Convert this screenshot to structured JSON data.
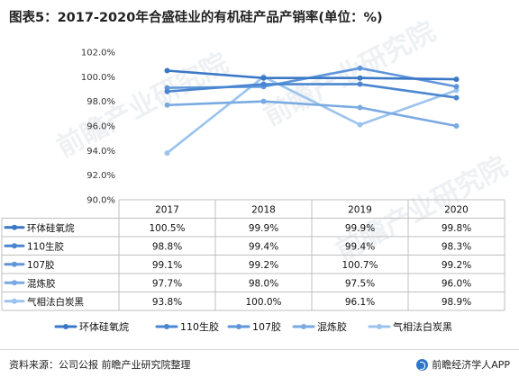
{
  "title": "图表5：2017-2020年合盛硅业的有机硅产品产销率(单位：%)",
  "source": "资料来源：公司公报 前瞻产业研究院整理",
  "brand": "前瞻经济学人APP",
  "watermark": "前瞻产业研究院",
  "chart_data": {
    "type": "line",
    "categories": [
      "2017",
      "2018",
      "2019",
      "2020"
    ],
    "y_ticks": [
      "102.0%",
      "100.0%",
      "98.0%",
      "96.0%",
      "94.0%",
      "92.0%",
      "90.0%"
    ],
    "ylim": [
      90,
      102
    ],
    "grid": false,
    "legend_position": "bottom",
    "series": [
      {
        "name": "环体硅氧烷",
        "values": [
          100.5,
          99.9,
          99.9,
          99.8
        ],
        "labels": [
          "100.5%",
          "99.9%",
          "99.9%",
          "99.8%"
        ],
        "color": "#3a78c6"
      },
      {
        "name": "110生胶",
        "values": [
          98.8,
          99.4,
          99.4,
          98.3
        ],
        "labels": [
          "98.8%",
          "99.4%",
          "99.4%",
          "98.3%"
        ],
        "color": "#4a86d0"
      },
      {
        "name": "107胶",
        "values": [
          99.1,
          99.2,
          100.7,
          99.2
        ],
        "labels": [
          "99.1%",
          "99.2%",
          "100.7%",
          "99.2%"
        ],
        "color": "#5f96da"
      },
      {
        "name": "混炼胶",
        "values": [
          97.7,
          98.0,
          97.5,
          96.0
        ],
        "labels": [
          "97.7%",
          "98.0%",
          "97.5%",
          "96.0%"
        ],
        "color": "#7aaae2"
      },
      {
        "name": "气相法白炭黑",
        "values": [
          93.8,
          100.0,
          96.1,
          98.9
        ],
        "labels": [
          "93.8%",
          "100.0%",
          "96.1%",
          "98.9%"
        ],
        "color": "#9cc3ee"
      }
    ]
  }
}
